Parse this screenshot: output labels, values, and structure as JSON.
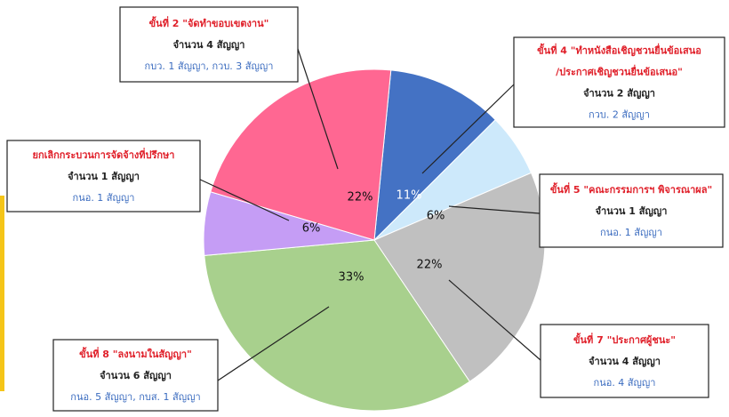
{
  "chart_data": {
    "type": "pie",
    "values": [
      11,
      6,
      22,
      33,
      6,
      22
    ],
    "value_labels": [
      "11%",
      "6%",
      "22%",
      "33%",
      "6%",
      "22%"
    ],
    "colors": [
      "#4472c4",
      "#cde9fb",
      "#c0c0c0",
      "#a8d08d",
      "#c59df5",
      "#ff6792"
    ],
    "callouts": [
      {
        "title": [
          "ขั้นที่ 4 \"ทำหนังสือเชิญชวนยื่นข้อเสนอ",
          "/ประกาศเชิญชวนยื่นข้อเสนอ\""
        ],
        "count": "จำนวน 2 สัญญา",
        "detail": "กวบ. 2 สัญญา"
      },
      {
        "title": [
          "ขั้นที่ 5 \"คณะกรรมการฯ พิจารณาผล\""
        ],
        "count": "จำนวน 1 สัญญา",
        "detail": "กนอ. 1 สัญญา"
      },
      {
        "title": [
          "ขั้นที่ 7 \"ประกาศผู้ชนะ\""
        ],
        "count": "จำนวน 4 สัญญา",
        "detail": "กนอ. 4 สัญญา"
      },
      {
        "title": [
          "ขั้นที่ 8 \"ลงนามในสัญญา\""
        ],
        "count": "จำนวน 6 สัญญา",
        "detail": "กนอ. 5 สัญญา, กบส. 1 สัญญา"
      },
      {
        "title": [
          "ยกเลิกกระบวนการจัดจ้างที่ปรึกษา"
        ],
        "count": "จำนวน 1 สัญญา",
        "detail": "กนอ. 1 สัญญา"
      },
      {
        "title": [
          "ขั้นที่ 2 \"จัดทำขอบเขตงาน\""
        ],
        "count": "จำนวน 4 สัญญา",
        "detail": "กบว. 1 สัญญา, กวบ. 3 สัญญา"
      }
    ]
  }
}
